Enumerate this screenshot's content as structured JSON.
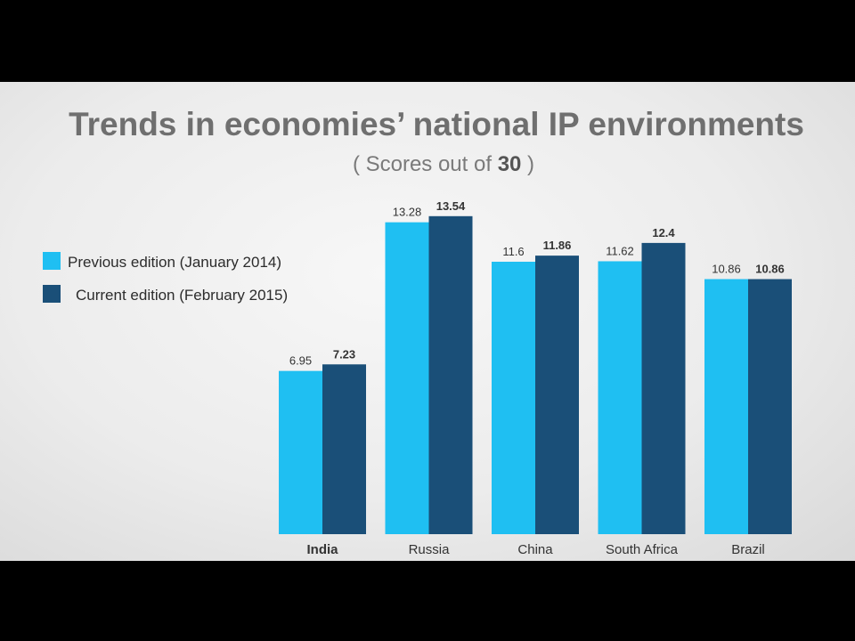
{
  "chart_data": {
    "type": "bar",
    "title": "Trends in economies’ national IP environments",
    "subtitle_prefix": "( Scores out of ",
    "subtitle_bold": "30",
    "subtitle_suffix": " )",
    "categories": [
      "India",
      "Russia",
      "China",
      "South Africa",
      "Brazil"
    ],
    "series": [
      {
        "name": "Previous edition (January 2014)",
        "color": "#1fbff2",
        "values": [
          6.95,
          13.28,
          11.6,
          11.62,
          10.86
        ],
        "labels": [
          "6.95",
          "13.28",
          "11.6",
          "11.62",
          "10.86"
        ]
      },
      {
        "name": "Current edition (February 2015)",
        "color": "#1a4f78",
        "values": [
          7.23,
          13.54,
          11.86,
          12.4,
          10.86
        ],
        "labels": [
          "7.23",
          "13.54",
          "11.86",
          "12.4",
          "10.86"
        ]
      }
    ],
    "ylim": [
      0,
      14.7
    ],
    "grid": false,
    "legend_position": "left",
    "highlight_category": "India"
  }
}
